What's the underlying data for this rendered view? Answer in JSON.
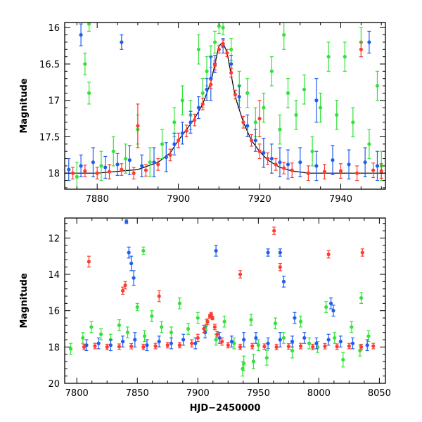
{
  "chart_data": [
    {
      "type": "scatter",
      "title": "",
      "xlabel": "",
      "ylabel": "Magnitude",
      "xlim": [
        7872,
        7951
      ],
      "ylim": [
        18.22,
        15.93
      ],
      "y_inverted": true,
      "grid": false,
      "x_ticks": [
        7880,
        7900,
        7920,
        7940
      ],
      "y_ticks": [
        16,
        16.5,
        17,
        17.5,
        18
      ],
      "model_curve": {
        "x": [
          7872,
          7880,
          7890,
          7895,
          7898,
          7900,
          7902,
          7904,
          7906,
          7908,
          7909,
          7910,
          7911,
          7912,
          7913,
          7914,
          7916,
          7918,
          7920,
          7922,
          7925,
          7928,
          7932,
          7940,
          7951
        ],
        "y": [
          18.0,
          18.0,
          17.95,
          17.85,
          17.72,
          17.55,
          17.4,
          17.25,
          17.05,
          16.75,
          16.5,
          16.25,
          16.2,
          16.35,
          16.65,
          16.95,
          17.3,
          17.55,
          17.7,
          17.82,
          17.92,
          17.97,
          18.0,
          18.0,
          18.0
        ]
      },
      "series": [
        {
          "color": "#ff3b2f",
          "x": [
            7874,
            7877,
            7880,
            7883,
            7886,
            7889,
            7892,
            7895,
            7898,
            7900,
            7902,
            7904,
            7906,
            7908,
            7909,
            7910,
            7911,
            7912,
            7913,
            7914,
            7916,
            7918,
            7920,
            7922,
            7924,
            7926,
            7928,
            7932,
            7936,
            7940,
            7944,
            7948,
            7950,
            7890,
            7920,
            7945
          ],
          "y": [
            18.0,
            17.97,
            18.0,
            17.98,
            17.95,
            18.0,
            17.96,
            17.88,
            17.75,
            17.55,
            17.42,
            17.27,
            17.05,
            16.78,
            16.52,
            16.3,
            16.22,
            16.35,
            16.62,
            16.92,
            17.3,
            17.55,
            17.7,
            17.8,
            17.88,
            17.93,
            17.96,
            18.0,
            17.98,
            17.97,
            18.0,
            17.96,
            17.97,
            17.35,
            17.25,
            16.3
          ],
          "yerr": [
            0.08,
            0.08,
            0.08,
            0.1,
            0.08,
            0.08,
            0.08,
            0.08,
            0.08,
            0.1,
            0.08,
            0.08,
            0.08,
            0.06,
            0.06,
            0.05,
            0.05,
            0.05,
            0.06,
            0.06,
            0.08,
            0.08,
            0.1,
            0.08,
            0.08,
            0.08,
            0.1,
            0.1,
            0.1,
            0.1,
            0.1,
            0.1,
            0.1,
            0.3,
            0.25,
            0.1
          ]
        },
        {
          "color": "#1f5ef0",
          "x": [
            7873,
            7876,
            7879,
            7882,
            7885,
            7888,
            7891,
            7894,
            7897,
            7899,
            7901,
            7903,
            7905,
            7907,
            7909,
            7911,
            7913,
            7915,
            7917,
            7919,
            7921,
            7923,
            7925,
            7927,
            7930,
            7934,
            7938,
            7942,
            7946,
            7949,
            7876,
            7886,
            7908,
            7934,
            7947
          ],
          "y": [
            17.95,
            17.9,
            17.85,
            17.92,
            17.88,
            17.82,
            17.9,
            17.85,
            17.78,
            17.6,
            17.45,
            17.3,
            17.1,
            16.85,
            16.5,
            16.25,
            16.5,
            16.95,
            17.35,
            17.55,
            17.72,
            17.8,
            17.85,
            17.88,
            17.85,
            17.9,
            17.82,
            17.88,
            17.85,
            17.9,
            16.1,
            16.2,
            16.7,
            17.0,
            16.2
          ],
          "yerr": [
            0.15,
            0.15,
            0.2,
            0.15,
            0.15,
            0.2,
            0.15,
            0.2,
            0.2,
            0.15,
            0.15,
            0.15,
            0.15,
            0.15,
            0.12,
            0.1,
            0.12,
            0.15,
            0.15,
            0.15,
            0.2,
            0.2,
            0.2,
            0.2,
            0.2,
            0.2,
            0.2,
            0.2,
            0.2,
            0.2,
            0.15,
            0.1,
            0.3,
            0.3,
            0.15
          ]
        },
        {
          "color": "#33e23a",
          "x": [
            7875,
            7877,
            7878,
            7878,
            7881,
            7884,
            7887,
            7890,
            7893,
            7896,
            7899,
            7901,
            7903,
            7905,
            7906,
            7907,
            7908,
            7909,
            7910,
            7911,
            7913,
            7915,
            7917,
            7919,
            7921,
            7923,
            7925,
            7926,
            7927,
            7929,
            7931,
            7933,
            7935,
            7937,
            7939,
            7941,
            7943,
            7945,
            7947,
            7949,
            7950
          ],
          "y": [
            18.05,
            16.5,
            16.9,
            15.95,
            17.9,
            17.7,
            17.8,
            17.4,
            17.85,
            17.6,
            17.3,
            17.0,
            17.2,
            16.3,
            16.9,
            16.6,
            16.4,
            16.2,
            15.98,
            16.0,
            16.3,
            16.8,
            16.9,
            17.3,
            17.1,
            16.6,
            17.4,
            16.1,
            16.9,
            17.2,
            16.85,
            17.7,
            17.1,
            16.4,
            17.2,
            16.4,
            17.3,
            16.2,
            17.6,
            16.8,
            17.9
          ],
          "yerr": [
            0.2,
            0.15,
            0.15,
            0.1,
            0.2,
            0.2,
            0.2,
            0.2,
            0.2,
            0.2,
            0.2,
            0.2,
            0.2,
            0.2,
            0.2,
            0.2,
            0.15,
            0.15,
            0.1,
            0.1,
            0.15,
            0.2,
            0.2,
            0.2,
            0.2,
            0.2,
            0.2,
            0.2,
            0.2,
            0.2,
            0.2,
            0.2,
            0.2,
            0.2,
            0.2,
            0.2,
            0.2,
            0.2,
            0.2,
            0.2,
            0.2
          ]
        }
      ]
    },
    {
      "type": "scatter",
      "title": "",
      "xlabel": "HJD−2450000",
      "ylabel": "Magnitude",
      "xlim": [
        7790,
        8055
      ],
      "ylim": [
        20,
        10.9
      ],
      "y_inverted": true,
      "grid": false,
      "x_ticks": [
        7800,
        7850,
        7900,
        7950,
        8000,
        8050
      ],
      "y_ticks": [
        12,
        14,
        16,
        18,
        20
      ],
      "series": [
        {
          "color": "#ff3b2f",
          "x": [
            7806,
            7815,
            7825,
            7835,
            7845,
            7855,
            7865,
            7875,
            7885,
            7895,
            7900,
            7905,
            7908,
            7910,
            7911,
            7912,
            7914,
            7916,
            7920,
            7925,
            7935,
            7945,
            7955,
            7965,
            7975,
            7985,
            7995,
            8005,
            8015,
            8025,
            8035,
            8045,
            7810,
            7838,
            7840,
            7868,
            7935,
            7963,
            7968,
            8008,
            8036
          ],
          "y": [
            18.0,
            17.95,
            18.0,
            17.98,
            17.96,
            18.0,
            17.95,
            17.9,
            17.9,
            17.8,
            17.5,
            17.0,
            16.6,
            16.3,
            16.2,
            16.4,
            16.9,
            17.3,
            17.7,
            17.9,
            18.0,
            17.95,
            17.98,
            18.0,
            17.97,
            17.95,
            18.0,
            17.96,
            17.98,
            17.95,
            18.0,
            17.95,
            13.3,
            14.9,
            14.6,
            15.2,
            14.0,
            11.6,
            13.6,
            12.9,
            12.8
          ],
          "yerr": [
            0.15,
            0.15,
            0.15,
            0.15,
            0.15,
            0.15,
            0.15,
            0.15,
            0.15,
            0.2,
            0.2,
            0.2,
            0.15,
            0.1,
            0.1,
            0.1,
            0.15,
            0.15,
            0.2,
            0.15,
            0.15,
            0.15,
            0.15,
            0.15,
            0.15,
            0.15,
            0.15,
            0.15,
            0.15,
            0.15,
            0.15,
            0.15,
            0.3,
            0.2,
            0.2,
            0.3,
            0.2,
            0.2,
            0.2,
            0.2,
            0.2
          ]
        },
        {
          "color": "#1f5ef0",
          "x": [
            7808,
            7818,
            7828,
            7838,
            7848,
            7858,
            7868,
            7878,
            7888,
            7898,
            7906,
            7918,
            7928,
            7938,
            7948,
            7958,
            7968,
            7978,
            7988,
            7998,
            8008,
            8018,
            8028,
            8040,
            7841,
            7843,
            7845,
            7847,
            7915,
            7958,
            7968,
            7971,
            7980,
            8010,
            8012
          ],
          "y": [
            17.9,
            17.8,
            17.9,
            17.7,
            17.6,
            17.9,
            17.7,
            17.8,
            17.6,
            17.8,
            17.2,
            17.5,
            17.7,
            17.6,
            17.5,
            17.8,
            17.6,
            17.7,
            17.5,
            17.8,
            17.6,
            17.7,
            17.8,
            17.9,
            11.1,
            12.8,
            13.4,
            14.2,
            12.7,
            12.8,
            12.8,
            14.4,
            16.4,
            15.6,
            16.0
          ],
          "yerr": [
            0.3,
            0.3,
            0.3,
            0.3,
            0.4,
            0.3,
            0.3,
            0.3,
            0.3,
            0.3,
            0.3,
            0.3,
            0.3,
            0.4,
            0.3,
            0.3,
            0.4,
            0.3,
            0.3,
            0.3,
            0.3,
            0.3,
            0.3,
            0.3,
            0.1,
            0.3,
            0.4,
            0.4,
            0.3,
            0.2,
            0.2,
            0.3,
            0.3,
            0.3,
            0.3
          ]
        },
        {
          "color": "#33e23a",
          "x": [
            7795,
            7805,
            7812,
            7820,
            7828,
            7835,
            7842,
            7850,
            7856,
            7862,
            7870,
            7878,
            7885,
            7892,
            7900,
            7907,
            7915,
            7922,
            7930,
            7937,
            7944,
            7950,
            7957,
            7964,
            7971,
            7978,
            7985,
            7992,
            7999,
            8006,
            8013,
            8020,
            8027,
            8034,
            8041,
            7855,
            7938,
            7946,
            8035
          ],
          "y": [
            18.1,
            17.5,
            16.9,
            17.3,
            17.6,
            16.8,
            17.2,
            15.8,
            17.4,
            16.3,
            16.9,
            17.2,
            15.6,
            17.0,
            16.4,
            16.8,
            17.6,
            16.6,
            17.8,
            19.2,
            16.5,
            17.9,
            18.6,
            16.7,
            17.5,
            18.2,
            16.6,
            17.8,
            18.0,
            15.8,
            17.5,
            18.7,
            16.9,
            18.2,
            17.4,
            12.7,
            18.9,
            18.8,
            15.3
          ],
          "yerr": [
            0.3,
            0.3,
            0.3,
            0.3,
            0.3,
            0.3,
            0.3,
            0.2,
            0.3,
            0.3,
            0.3,
            0.3,
            0.3,
            0.3,
            0.3,
            0.3,
            0.3,
            0.3,
            0.3,
            0.4,
            0.3,
            0.3,
            0.4,
            0.3,
            0.3,
            0.4,
            0.3,
            0.3,
            0.3,
            0.3,
            0.3,
            0.4,
            0.3,
            0.3,
            0.3,
            0.2,
            0.4,
            0.4,
            0.3
          ]
        }
      ]
    }
  ]
}
